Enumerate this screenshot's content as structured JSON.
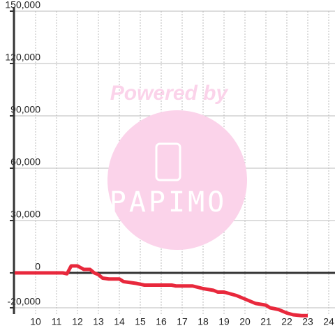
{
  "chart_data": {
    "type": "line",
    "watermark": {
      "line1": "Powered by",
      "line2": "PAPIMO"
    },
    "x": [
      9,
      11.3,
      11.5,
      11.7,
      12.0,
      12.3,
      12.6,
      12.8,
      13.0,
      13.2,
      13.5,
      14.0,
      14.2,
      14.8,
      15.2,
      15.5,
      16.5,
      16.7,
      17.5,
      18.0,
      18.5,
      18.7,
      19.0,
      19.6,
      20.0,
      20.5,
      21.0,
      21.2,
      21.6,
      22.0,
      22.3,
      22.7,
      23.0
    ],
    "series": [
      {
        "color": "#e8283c",
        "values": [
          0,
          0,
          -500,
          4000,
          4000,
          2000,
          2000,
          0,
          -1000,
          -3000,
          -3500,
          -3500,
          -5000,
          -6000,
          -7000,
          -7000,
          -7000,
          -7500,
          -7500,
          -9000,
          -10000,
          -11000,
          -11000,
          -13000,
          -15000,
          -17500,
          -18500,
          -20000,
          -21000,
          -23000,
          -24000,
          -24500,
          -24500
        ]
      }
    ],
    "xlim": [
      9,
      24.3
    ],
    "xticks": [
      10,
      11,
      12,
      13,
      14,
      15,
      16,
      17,
      18,
      19,
      20,
      21,
      22,
      23,
      24
    ],
    "ylim": [
      -25000,
      150000
    ],
    "yticks": [
      {
        "value": 150000,
        "label": "150,000"
      },
      {
        "value": 120000,
        "label": "120,000"
      },
      {
        "value": 90000,
        "label": "90,000"
      },
      {
        "value": 60000,
        "label": "60,000"
      },
      {
        "value": 30000,
        "label": "30,000"
      },
      0,
      {
        "value": -20000,
        "label": "-20,000"
      }
    ],
    "grid": true
  }
}
